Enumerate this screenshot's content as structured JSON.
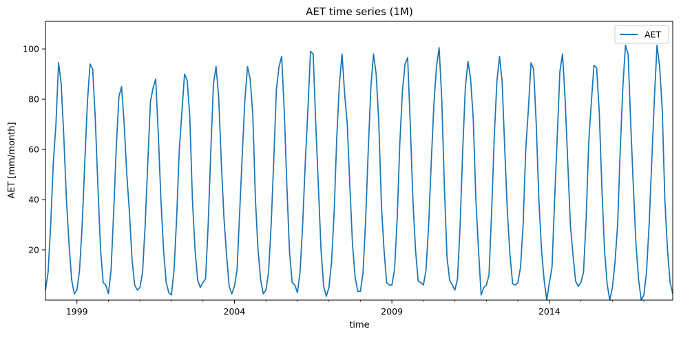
{
  "chart_data": {
    "type": "line",
    "title": "AET time series (1M)",
    "xlabel": "time",
    "ylabel": "AET [mm/month]",
    "xlim": [
      "1998-01",
      "2017-12"
    ],
    "ylim": [
      0,
      111
    ],
    "x_ticks": [
      "1999",
      "2004",
      "2009",
      "2014"
    ],
    "y_ticks": [
      "20",
      "40",
      "60",
      "80",
      "100"
    ],
    "grid": false,
    "legend_position": "top-right",
    "series": [
      {
        "name": "AET",
        "color": "#1f77b4",
        "start": "1998-01",
        "frequency": "monthly",
        "values": [
          4,
          11,
          30,
          55,
          70,
          94.5,
          86,
          65,
          40,
          22,
          8,
          2.5,
          4,
          12,
          30,
          55,
          79,
          94,
          92,
          72,
          45,
          20,
          7,
          6,
          2.5,
          12,
          35,
          61,
          81,
          85,
          70,
          50,
          35,
          16,
          6,
          4,
          5,
          11,
          30,
          55,
          79,
          84.5,
          88,
          66,
          40,
          20,
          7,
          3,
          2,
          12,
          33,
          60,
          75,
          90,
          87.5,
          73,
          40,
          20,
          8,
          5,
          7,
          8.5,
          30,
          59,
          86,
          93,
          81,
          55,
          33,
          18,
          5.5,
          2.5,
          5.5,
          12,
          35,
          58,
          80,
          93,
          88,
          74,
          40,
          20,
          8,
          2.5,
          4,
          11,
          30,
          56,
          84,
          93,
          97,
          75,
          45,
          19,
          7,
          6,
          3,
          11,
          30,
          55,
          76,
          99,
          98,
          70,
          45,
          20,
          5.5,
          1.5,
          5,
          15,
          35,
          65,
          86,
          98,
          82,
          70,
          45,
          22,
          9,
          3.5,
          3.5,
          11,
          32,
          60,
          85,
          98,
          90,
          71,
          38,
          20,
          7,
          6,
          6,
          12,
          32,
          62,
          83,
          94,
          96.5,
          70,
          40,
          20,
          7.5,
          7,
          6,
          12,
          30,
          55,
          78,
          93,
          100.5,
          80,
          45,
          17,
          8,
          6,
          4,
          8.5,
          30,
          60,
          85,
          95,
          88,
          72,
          40,
          20,
          2,
          5,
          6,
          10,
          35,
          65,
          87,
          97,
          87,
          60,
          35,
          18,
          6.5,
          6,
          7,
          13,
          30,
          60,
          76,
          94.5,
          92,
          70,
          40,
          20,
          8,
          0,
          7,
          13,
          40,
          65,
          91,
          98,
          80,
          55,
          30,
          18,
          7.5,
          5.5,
          7,
          11,
          32,
          63,
          79,
          93.5,
          92.5,
          75,
          45,
          20,
          6.5,
          0,
          5,
          15,
          30,
          60,
          85,
          101.5,
          98,
          70,
          45,
          22,
          8,
          0,
          2,
          11,
          30,
          55,
          80,
          101.5,
          93,
          76,
          40,
          20,
          7,
          2.5
        ]
      }
    ]
  }
}
